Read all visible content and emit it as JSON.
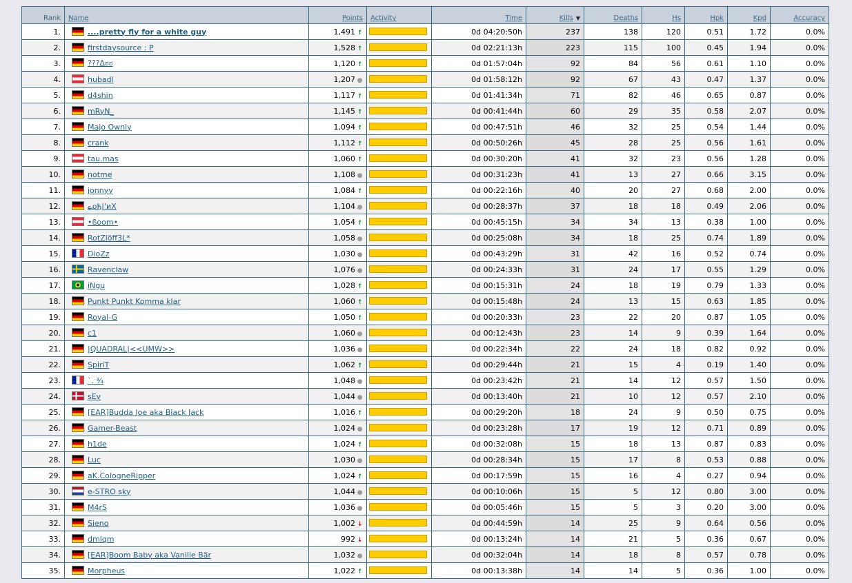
{
  "headers": {
    "rank": "Rank",
    "name": "Name",
    "points": "Points",
    "activity": "Activity",
    "time": "Time",
    "kills": "Kills",
    "deaths": "Deaths",
    "hs": "Hs",
    "hpk": "Hpk",
    "kpd": "Kpd",
    "accuracy": "Accuracy"
  },
  "colors": {
    "activity_bar": "#ffcc00",
    "trend_up": "#0a8a1a",
    "trend_down": "#dd0000"
  },
  "players": [
    {
      "rank": "1.",
      "flag": "de",
      "name": "....pretty fly for a white guy",
      "bold": true,
      "points": "1,491",
      "trend": "up",
      "activity": 1.0,
      "time": "0d 04:20:50h",
      "kills": "237",
      "deaths": "138",
      "hs": "120",
      "hpk": "0.51",
      "kpd": "1.72",
      "accuracy": "0.0%"
    },
    {
      "rank": "2.",
      "flag": "de",
      "name": "firstdaysource : P",
      "points": "1,528",
      "trend": "up",
      "activity": 1.0,
      "time": "0d 02:21:13h",
      "kills": "223",
      "deaths": "115",
      "hs": "100",
      "hpk": "0.45",
      "kpd": "1.94",
      "accuracy": "0.0%"
    },
    {
      "rank": "3.",
      "flag": "de",
      "name": "???∆ಠಠ",
      "points": "1,120",
      "trend": "up",
      "activity": 1.0,
      "time": "0d 01:57:04h",
      "kills": "92",
      "deaths": "84",
      "hs": "56",
      "hpk": "0.61",
      "kpd": "1.10",
      "accuracy": "0.0%"
    },
    {
      "rank": "4.",
      "flag": "at",
      "name": "hubadl",
      "points": "1,207",
      "trend": "same",
      "activity": 1.0,
      "time": "0d 01:58:12h",
      "kills": "92",
      "deaths": "67",
      "hs": "43",
      "hpk": "0.47",
      "kpd": "1.37",
      "accuracy": "0.0%"
    },
    {
      "rank": "5.",
      "flag": "de",
      "name": "d4shin",
      "points": "1,117",
      "trend": "up",
      "activity": 1.0,
      "time": "0d 01:41:34h",
      "kills": "71",
      "deaths": "82",
      "hs": "46",
      "hpk": "0.65",
      "kpd": "0.87",
      "accuracy": "0.0%"
    },
    {
      "rank": "6.",
      "flag": "de",
      "name": "mRyN_",
      "points": "1,145",
      "trend": "up",
      "activity": 1.0,
      "time": "0d 00:41:44h",
      "kills": "60",
      "deaths": "29",
      "hs": "35",
      "hpk": "0.58",
      "kpd": "2.07",
      "accuracy": "0.0%"
    },
    {
      "rank": "7.",
      "flag": "de",
      "name": "Majo Ownly",
      "points": "1,094",
      "trend": "up",
      "activity": 1.0,
      "time": "0d 00:47:51h",
      "kills": "46",
      "deaths": "32",
      "hs": "25",
      "hpk": "0.54",
      "kpd": "1.44",
      "accuracy": "0.0%"
    },
    {
      "rank": "8.",
      "flag": "de",
      "name": "crank",
      "points": "1,112",
      "trend": "up",
      "activity": 1.0,
      "time": "0d 00:50:26h",
      "kills": "45",
      "deaths": "28",
      "hs": "25",
      "hpk": "0.56",
      "kpd": "1.61",
      "accuracy": "0.0%"
    },
    {
      "rank": "9.",
      "flag": "at",
      "name": "tau.mas",
      "points": "1,060",
      "trend": "up",
      "activity": 1.0,
      "time": "0d 00:30:20h",
      "kills": "41",
      "deaths": "32",
      "hs": "23",
      "hpk": "0.56",
      "kpd": "1.28",
      "accuracy": "0.0%"
    },
    {
      "rank": "10.",
      "flag": "de",
      "name": "notme",
      "points": "1,108",
      "trend": "same",
      "activity": 1.0,
      "time": "0d 00:31:23h",
      "kills": "41",
      "deaths": "13",
      "hs": "27",
      "hpk": "0.66",
      "kpd": "3.15",
      "accuracy": "0.0%"
    },
    {
      "rank": "11.",
      "flag": "de",
      "name": "jonnyy",
      "points": "1,084",
      "trend": "up",
      "activity": 1.0,
      "time": "0d 00:22:16h",
      "kills": "40",
      "deaths": "20",
      "hs": "27",
      "hpk": "0.68",
      "kpd": "2.00",
      "accuracy": "0.0%"
    },
    {
      "rank": "12.",
      "flag": "de",
      "name": "ےρђ|'иΧ",
      "points": "1,104",
      "trend": "same",
      "activity": 1.0,
      "time": "0d 00:28:37h",
      "kills": "37",
      "deaths": "18",
      "hs": "18",
      "hpk": "0.49",
      "kpd": "2.06",
      "accuracy": "0.0%"
    },
    {
      "rank": "13.",
      "flag": "at",
      "name": "•ßoom•",
      "points": "1,054",
      "trend": "up",
      "activity": 1.0,
      "time": "0d 00:45:15h",
      "kills": "34",
      "deaths": "34",
      "hs": "13",
      "hpk": "0.38",
      "kpd": "1.00",
      "accuracy": "0.0%"
    },
    {
      "rank": "14.",
      "flag": "de",
      "name": "RotZlöff3L*",
      "points": "1,058",
      "trend": "same",
      "activity": 1.0,
      "time": "0d 00:25:08h",
      "kills": "34",
      "deaths": "18",
      "hs": "25",
      "hpk": "0.74",
      "kpd": "1.89",
      "accuracy": "0.0%"
    },
    {
      "rank": "15.",
      "flag": "fr",
      "name": "DioZz",
      "points": "1,030",
      "trend": "same",
      "activity": 1.0,
      "time": "0d 00:43:29h",
      "kills": "31",
      "deaths": "42",
      "hs": "16",
      "hpk": "0.52",
      "kpd": "0.74",
      "accuracy": "0.0%"
    },
    {
      "rank": "16.",
      "flag": "se",
      "name": "Ravenclaw",
      "points": "1,076",
      "trend": "same",
      "activity": 1.0,
      "time": "0d 00:24:33h",
      "kills": "31",
      "deaths": "24",
      "hs": "17",
      "hpk": "0.55",
      "kpd": "1.29",
      "accuracy": "0.0%"
    },
    {
      "rank": "17.",
      "flag": "br",
      "name": "iNgu",
      "points": "1,028",
      "trend": "up",
      "activity": 1.0,
      "time": "0d 00:15:31h",
      "kills": "24",
      "deaths": "18",
      "hs": "19",
      "hpk": "0.79",
      "kpd": "1.33",
      "accuracy": "0.0%"
    },
    {
      "rank": "18.",
      "flag": "de",
      "name": "Punkt Punkt Komma klar",
      "points": "1,060",
      "trend": "up",
      "activity": 1.0,
      "time": "0d 00:15:48h",
      "kills": "24",
      "deaths": "13",
      "hs": "15",
      "hpk": "0.63",
      "kpd": "1.85",
      "accuracy": "0.0%"
    },
    {
      "rank": "19.",
      "flag": "de",
      "name": "Royal-G",
      "points": "1,050",
      "trend": "up",
      "activity": 1.0,
      "time": "0d 00:20:33h",
      "kills": "23",
      "deaths": "22",
      "hs": "20",
      "hpk": "0.87",
      "kpd": "1.05",
      "accuracy": "0.0%"
    },
    {
      "rank": "20.",
      "flag": "de",
      "name": "c1",
      "points": "1,060",
      "trend": "same",
      "activity": 1.0,
      "time": "0d 00:12:43h",
      "kills": "23",
      "deaths": "14",
      "hs": "9",
      "hpk": "0.39",
      "kpd": "1.64",
      "accuracy": "0.0%"
    },
    {
      "rank": "21.",
      "flag": "de",
      "name": "|QUADRAL|<<UMW>>",
      "points": "1,036",
      "trend": "same",
      "activity": 1.0,
      "time": "0d 00:22:34h",
      "kills": "22",
      "deaths": "24",
      "hs": "18",
      "hpk": "0.82",
      "kpd": "0.92",
      "accuracy": "0.0%"
    },
    {
      "rank": "22.",
      "flag": "de",
      "name": "SpiriT",
      "points": "1,062",
      "trend": "up",
      "activity": 1.0,
      "time": "0d 00:29:44h",
      "kills": "21",
      "deaths": "15",
      "hs": "4",
      "hpk": "0.19",
      "kpd": "1.40",
      "accuracy": "0.0%"
    },
    {
      "rank": "23.",
      "flag": "fr",
      "name": "`. ¾",
      "points": "1,048",
      "trend": "same",
      "activity": 1.0,
      "time": "0d 00:23:42h",
      "kills": "21",
      "deaths": "14",
      "hs": "12",
      "hpk": "0.57",
      "kpd": "1.50",
      "accuracy": "0.0%"
    },
    {
      "rank": "24.",
      "flag": "dk",
      "name": "sEv",
      "points": "1,044",
      "trend": "same",
      "activity": 1.0,
      "time": "0d 00:13:40h",
      "kills": "21",
      "deaths": "10",
      "hs": "12",
      "hpk": "0.57",
      "kpd": "2.10",
      "accuracy": "0.0%"
    },
    {
      "rank": "25.",
      "flag": "de",
      "name": "[EAR]Budda Joe aka Black Jack",
      "points": "1,016",
      "trend": "up",
      "activity": 1.0,
      "time": "0d 00:29:20h",
      "kills": "18",
      "deaths": "24",
      "hs": "9",
      "hpk": "0.50",
      "kpd": "0.75",
      "accuracy": "0.0%"
    },
    {
      "rank": "26.",
      "flag": "de",
      "name": "Gamer-Beast",
      "points": "1,024",
      "trend": "same",
      "activity": 1.0,
      "time": "0d 00:23:28h",
      "kills": "17",
      "deaths": "19",
      "hs": "12",
      "hpk": "0.71",
      "kpd": "0.89",
      "accuracy": "0.0%"
    },
    {
      "rank": "27.",
      "flag": "de",
      "name": "h1de",
      "points": "1,024",
      "trend": "up",
      "activity": 1.0,
      "time": "0d 00:32:08h",
      "kills": "15",
      "deaths": "18",
      "hs": "13",
      "hpk": "0.87",
      "kpd": "0.83",
      "accuracy": "0.0%"
    },
    {
      "rank": "28.",
      "flag": "de",
      "name": "Luc",
      "points": "1,030",
      "trend": "same",
      "activity": 1.0,
      "time": "0d 00:28:34h",
      "kills": "15",
      "deaths": "17",
      "hs": "8",
      "hpk": "0.53",
      "kpd": "0.88",
      "accuracy": "0.0%"
    },
    {
      "rank": "29.",
      "flag": "de",
      "name": "aK.CologneRipper",
      "points": "1,024",
      "trend": "up",
      "activity": 1.0,
      "time": "0d 00:17:59h",
      "kills": "15",
      "deaths": "16",
      "hs": "4",
      "hpk": "0.27",
      "kpd": "0.94",
      "accuracy": "0.0%"
    },
    {
      "rank": "30.",
      "flag": "nl",
      "name": "e-STRO sky",
      "points": "1,044",
      "trend": "same",
      "activity": 1.0,
      "time": "0d 00:10:06h",
      "kills": "15",
      "deaths": "5",
      "hs": "12",
      "hpk": "0.80",
      "kpd": "3.00",
      "accuracy": "0.0%"
    },
    {
      "rank": "31.",
      "flag": "de",
      "name": "M4rS",
      "points": "1,036",
      "trend": "same",
      "activity": 1.0,
      "time": "0d 00:05:46h",
      "kills": "15",
      "deaths": "5",
      "hs": "3",
      "hpk": "0.20",
      "kpd": "3.00",
      "accuracy": "0.0%"
    },
    {
      "rank": "32.",
      "flag": "de",
      "name": "Sieno",
      "points": "1,002",
      "trend": "down",
      "activity": 1.0,
      "time": "0d 00:44:59h",
      "kills": "14",
      "deaths": "25",
      "hs": "9",
      "hpk": "0.64",
      "kpd": "0.56",
      "accuracy": "0.0%"
    },
    {
      "rank": "33.",
      "flag": "de",
      "name": "dmlqm",
      "points": "992",
      "trend": "down",
      "activity": 1.0,
      "time": "0d 00:13:24h",
      "kills": "14",
      "deaths": "21",
      "hs": "5",
      "hpk": "0.36",
      "kpd": "0.67",
      "accuracy": "0.0%"
    },
    {
      "rank": "34.",
      "flag": "de",
      "name": "[EAR]Boom Baby aka Vanille Bär",
      "points": "1,032",
      "trend": "same",
      "activity": 1.0,
      "time": "0d 00:32:04h",
      "kills": "14",
      "deaths": "18",
      "hs": "8",
      "hpk": "0.57",
      "kpd": "0.78",
      "accuracy": "0.0%"
    },
    {
      "rank": "35.",
      "flag": "de",
      "name": "Morpheus",
      "points": "1,022",
      "trend": "up",
      "activity": 1.0,
      "time": "0d 00:13:38h",
      "kills": "14",
      "deaths": "14",
      "hs": "5",
      "hpk": "0.36",
      "kpd": "1.00",
      "accuracy": "0.0%"
    }
  ]
}
